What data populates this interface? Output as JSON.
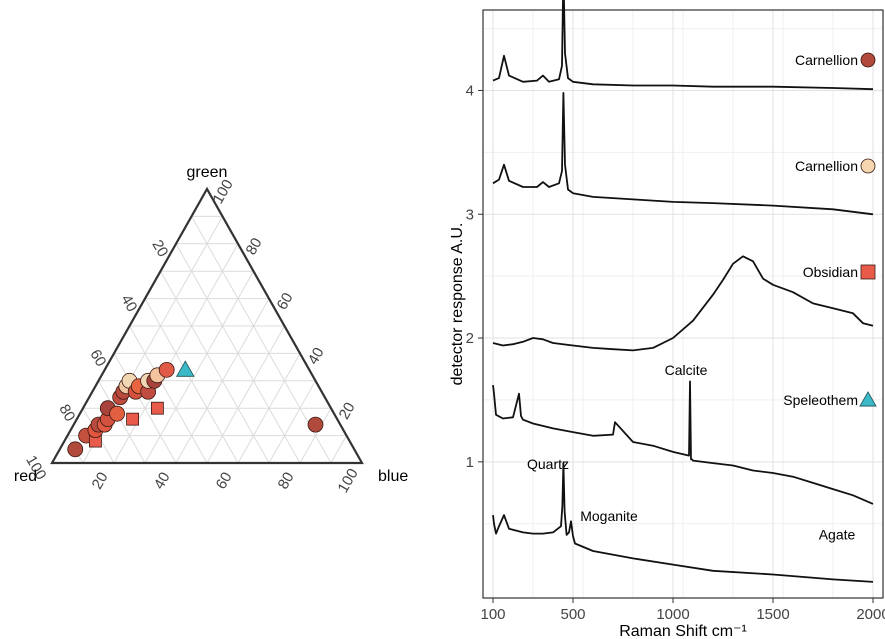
{
  "chart_data": [
    {
      "type": "ternary-scatter",
      "axes": {
        "bottom_left": "red",
        "top": "green",
        "bottom_right": "blue"
      },
      "ticks": [
        20,
        40,
        60,
        80,
        100
      ],
      "grid": true,
      "points": [
        {
          "red": 90,
          "green": 5,
          "blue": 5,
          "shape": "circle",
          "color": "#b04a3c"
        },
        {
          "red": 84,
          "green": 10,
          "blue": 6,
          "shape": "circle",
          "color": "#c4503e"
        },
        {
          "red": 82,
          "green": 8,
          "blue": 10,
          "shape": "square",
          "color": "#e85a4a"
        },
        {
          "red": 80,
          "green": 12,
          "blue": 8,
          "shape": "circle",
          "color": "#e2563f"
        },
        {
          "red": 78,
          "green": 14,
          "blue": 8,
          "shape": "circle",
          "color": "#b94a3e"
        },
        {
          "red": 76,
          "green": 14,
          "blue": 10,
          "shape": "circle",
          "color": "#e05a46"
        },
        {
          "red": 74,
          "green": 16,
          "blue": 10,
          "shape": "circle",
          "color": "#d3523f"
        },
        {
          "red": 72,
          "green": 20,
          "blue": 8,
          "shape": "circle",
          "color": "#a7433b"
        },
        {
          "red": 70,
          "green": 18,
          "blue": 12,
          "shape": "circle",
          "color": "#e2603f"
        },
        {
          "red": 66,
          "green": 24,
          "blue": 10,
          "shape": "circle",
          "color": "#c04b3f"
        },
        {
          "red": 66,
          "green": 16,
          "blue": 18,
          "shape": "square",
          "color": "#e85a4a"
        },
        {
          "red": 64,
          "green": 26,
          "blue": 10,
          "shape": "circle",
          "color": "#b84a3e"
        },
        {
          "red": 62,
          "green": 28,
          "blue": 10,
          "shape": "circle",
          "color": "#f0c8a2"
        },
        {
          "red": 60,
          "green": 30,
          "blue": 10,
          "shape": "circle",
          "color": "#f2d7b5"
        },
        {
          "red": 60,
          "green": 26,
          "blue": 14,
          "shape": "circle",
          "color": "#d3523f"
        },
        {
          "red": 58,
          "green": 28,
          "blue": 14,
          "shape": "circle",
          "color": "#e8653f"
        },
        {
          "red": 56,
          "green": 26,
          "blue": 18,
          "shape": "circle",
          "color": "#c04b3f"
        },
        {
          "red": 54,
          "green": 30,
          "blue": 16,
          "shape": "circle",
          "color": "#f2d7b5"
        },
        {
          "red": 52,
          "green": 30,
          "blue": 18,
          "shape": "circle",
          "color": "#a7433b"
        },
        {
          "red": 56,
          "green": 20,
          "blue": 24,
          "shape": "square",
          "color": "#e85a4a"
        },
        {
          "red": 50,
          "green": 32,
          "blue": 18,
          "shape": "circle",
          "color": "#f4c3a0"
        },
        {
          "red": 46,
          "green": 34,
          "blue": 20,
          "shape": "circle",
          "color": "#e05a46"
        },
        {
          "red": 40,
          "green": 34,
          "blue": 26,
          "shape": "triangle",
          "color": "#3bb9c7"
        },
        {
          "red": 8,
          "green": 14,
          "blue": 78,
          "shape": "circle",
          "color": "#b04a3c"
        }
      ]
    },
    {
      "type": "line",
      "xlabel": "Raman Shift cm⁻¹",
      "ylabel": "detector response A.U.",
      "xticks": [
        100,
        500,
        1000,
        1500,
        2000
      ],
      "yticks": [
        1,
        2,
        3,
        4
      ],
      "xlim": [
        50,
        2050
      ],
      "ylim": [
        -0.1,
        4.65
      ],
      "grid": true,
      "series": [
        {
          "name": "Carnellion",
          "legend_color": "#b04a3c",
          "legend_shape": "circle",
          "x": [
            100,
            130,
            155,
            180,
            250,
            320,
            350,
            380,
            430,
            445,
            452,
            460,
            475,
            500,
            600,
            800,
            1000,
            1200,
            1500,
            1800,
            2000
          ],
          "y": [
            4.08,
            4.1,
            4.28,
            4.12,
            4.07,
            4.08,
            4.12,
            4.07,
            4.09,
            4.2,
            4.97,
            4.3,
            4.1,
            4.07,
            4.05,
            4.04,
            4.04,
            4.03,
            4.03,
            4.02,
            4.01
          ]
        },
        {
          "name": "Carnellion",
          "legend_color": "#f5d6b0",
          "legend_shape": "circle",
          "x": [
            100,
            130,
            155,
            180,
            250,
            320,
            350,
            380,
            430,
            445,
            452,
            460,
            475,
            500,
            600,
            800,
            1000,
            1200,
            1500,
            1800,
            2000
          ],
          "y": [
            3.25,
            3.28,
            3.4,
            3.27,
            3.22,
            3.22,
            3.26,
            3.22,
            3.25,
            3.35,
            3.98,
            3.4,
            3.2,
            3.17,
            3.14,
            3.12,
            3.1,
            3.09,
            3.07,
            3.04,
            3.0
          ]
        },
        {
          "name": "Obsidian",
          "legend_color": "#e85a4a",
          "legend_shape": "square",
          "x": [
            100,
            150,
            200,
            250,
            300,
            350,
            400,
            500,
            600,
            700,
            800,
            900,
            1000,
            1100,
            1200,
            1250,
            1300,
            1350,
            1400,
            1450,
            1500,
            1600,
            1700,
            1800,
            1900,
            1950,
            2000
          ],
          "y": [
            1.96,
            1.94,
            1.95,
            1.97,
            2.0,
            1.99,
            1.96,
            1.94,
            1.92,
            1.91,
            1.9,
            1.92,
            2.0,
            2.14,
            2.35,
            2.47,
            2.6,
            2.66,
            2.62,
            2.48,
            2.43,
            2.37,
            2.28,
            2.24,
            2.2,
            2.12,
            2.1
          ]
        },
        {
          "name": "Speleothem",
          "legend_color": "#3bb9c7",
          "legend_shape": "triangle",
          "x": [
            100,
            105,
            115,
            150,
            200,
            230,
            240,
            250,
            300,
            400,
            500,
            600,
            700,
            710,
            800,
            900,
            1000,
            1080,
            1085,
            1090,
            1095,
            1100,
            1200,
            1300,
            1400,
            1500,
            1600,
            1700,
            1800,
            1900,
            2000
          ],
          "y": [
            1.62,
            1.55,
            1.38,
            1.35,
            1.36,
            1.55,
            1.37,
            1.34,
            1.31,
            1.27,
            1.24,
            1.21,
            1.22,
            1.32,
            1.16,
            1.13,
            1.08,
            1.05,
            1.65,
            1.02,
            1.02,
            1.01,
            0.99,
            0.97,
            0.93,
            0.91,
            0.88,
            0.83,
            0.78,
            0.73,
            0.66
          ]
        },
        {
          "name": "Agate",
          "x": [
            100,
            105,
            115,
            130,
            155,
            180,
            250,
            300,
            350,
            400,
            440,
            447,
            452,
            458,
            468,
            480,
            490,
            500,
            510,
            600,
            800,
            1000,
            1200,
            1500,
            1800,
            2000
          ],
          "y": [
            0.57,
            0.5,
            0.42,
            0.48,
            0.57,
            0.46,
            0.43,
            0.42,
            0.42,
            0.43,
            0.48,
            0.65,
            0.99,
            0.6,
            0.41,
            0.43,
            0.52,
            0.4,
            0.34,
            0.28,
            0.22,
            0.17,
            0.12,
            0.09,
            0.05,
            0.03
          ]
        }
      ],
      "annotations": [
        {
          "text": "Quartz",
          "x": 375,
          "y": 4.97
        },
        {
          "text": "Calcite",
          "x": 1065,
          "y": 1.75
        },
        {
          "text": "Quartz",
          "x": 375,
          "y": 0.99
        },
        {
          "text": "Moganite",
          "x": 680,
          "y": 0.57
        },
        {
          "text": "Agate",
          "x": 1820,
          "y": 0.42
        }
      ]
    }
  ]
}
